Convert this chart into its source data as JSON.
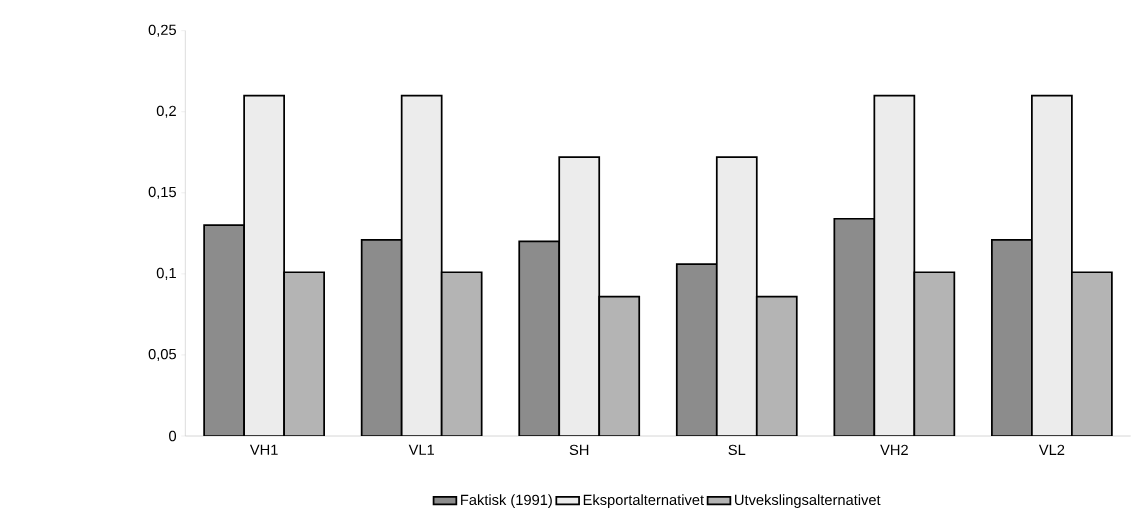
{
  "chart_data": {
    "type": "bar",
    "categories": [
      "VH1",
      "VL1",
      "SH",
      "SL",
      "VH2",
      "VL2"
    ],
    "series": [
      {
        "name": "Faktisk (1991)",
        "color": "#8c8c8c",
        "values": [
          0.13,
          0.121,
          0.12,
          0.106,
          0.134,
          0.121
        ]
      },
      {
        "name": "Eksportalternativet",
        "color": "#ececec",
        "values": [
          0.21,
          0.21,
          0.172,
          0.172,
          0.21,
          0.21
        ]
      },
      {
        "name": "Utvekslingsalternativet",
        "color": "#b4b4b4",
        "values": [
          0.101,
          0.101,
          0.086,
          0.086,
          0.101,
          0.101
        ]
      }
    ],
    "ylim": [
      0,
      0.25
    ],
    "yticks": [
      0,
      {
        "value": 0.05,
        "label": "0,05"
      },
      {
        "value": 0.1,
        "label": "0,1"
      },
      {
        "value": 0.15,
        "label": "0,15"
      },
      {
        "value": 0.2,
        "label": "0,2"
      },
      {
        "value": 0.25,
        "label": "0,25"
      }
    ],
    "grid": false,
    "legend": "bottom"
  }
}
